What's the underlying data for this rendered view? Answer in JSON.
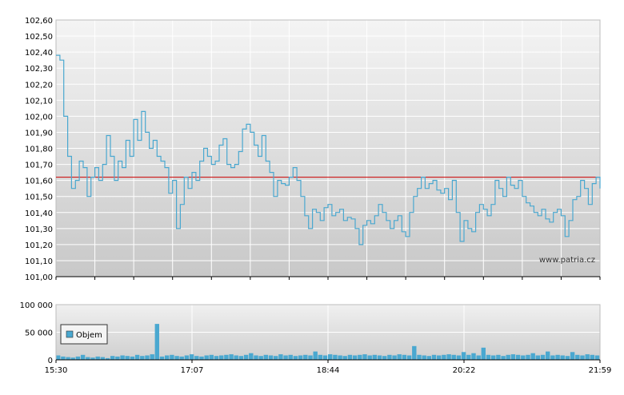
{
  "chart_data": [
    {
      "type": "line",
      "panel": "price",
      "ylim": [
        101.0,
        102.6
      ],
      "y_ticks": [
        "101,00",
        "101,10",
        "101,20",
        "101,30",
        "101,40",
        "101,50",
        "101,60",
        "101,70",
        "101,80",
        "101,90",
        "102,00",
        "102,10",
        "102,20",
        "102,30",
        "102,40",
        "102,50",
        "102,60"
      ],
      "reference_line": 101.62,
      "watermark": "www.patria.cz",
      "line_color": "#4aa8d0",
      "reference_color": "#cc0000",
      "grid": true,
      "series": [
        {
          "x": [
            0,
            1,
            2,
            3,
            4,
            5,
            6,
            7,
            8,
            9,
            10,
            11,
            12,
            13,
            14,
            15,
            16,
            17,
            18,
            19,
            20,
            21,
            22,
            23,
            24,
            25,
            26,
            27,
            28,
            29,
            30,
            31,
            32,
            33,
            34,
            35,
            36,
            37,
            38,
            39,
            40,
            41,
            42,
            43,
            44,
            45,
            46,
            47,
            48,
            49,
            50,
            51,
            52,
            53,
            54,
            55,
            56,
            57,
            58,
            59,
            60,
            61,
            62,
            63,
            64,
            65,
            66,
            67,
            68,
            69,
            70,
            71,
            72,
            73,
            74,
            75,
            76,
            77,
            78,
            79,
            80,
            81,
            82,
            83,
            84,
            85,
            86,
            87,
            88,
            89,
            90,
            91,
            92,
            93,
            94,
            95,
            96,
            97,
            98,
            99,
            100,
            101,
            102,
            103,
            104,
            105,
            106,
            107,
            108,
            109,
            110,
            111,
            112,
            113,
            114,
            115,
            116,
            117,
            118,
            119,
            120,
            121,
            122,
            123,
            124,
            125,
            126,
            127,
            128,
            129,
            130,
            131,
            132,
            133,
            134,
            135,
            136,
            137,
            138,
            139,
            140
          ],
          "values": [
            102.38,
            102.35,
            102.0,
            101.75,
            101.55,
            101.6,
            101.72,
            101.68,
            101.5,
            101.62,
            101.68,
            101.6,
            101.7,
            101.88,
            101.75,
            101.6,
            101.72,
            101.68,
            101.85,
            101.75,
            101.98,
            101.85,
            102.03,
            101.9,
            101.8,
            101.85,
            101.75,
            101.72,
            101.68,
            101.52,
            101.6,
            101.3,
            101.45,
            101.62,
            101.55,
            101.65,
            101.6,
            101.72,
            101.8,
            101.75,
            101.7,
            101.72,
            101.82,
            101.86,
            101.7,
            101.68,
            101.7,
            101.78,
            101.92,
            101.95,
            101.9,
            101.82,
            101.75,
            101.88,
            101.72,
            101.65,
            101.5,
            101.6,
            101.58,
            101.57,
            101.62,
            101.68,
            101.6,
            101.5,
            101.38,
            101.3,
            101.42,
            101.4,
            101.35,
            101.43,
            101.45,
            101.38,
            101.4,
            101.42,
            101.35,
            101.37,
            101.36,
            101.3,
            101.2,
            101.32,
            101.35,
            101.33,
            101.38,
            101.45,
            101.4,
            101.35,
            101.3,
            101.35,
            101.38,
            101.28,
            101.25,
            101.4,
            101.5,
            101.55,
            101.62,
            101.55,
            101.58,
            101.6,
            101.54,
            101.52,
            101.55,
            101.48,
            101.6,
            101.4,
            101.22,
            101.35,
            101.3,
            101.28,
            101.4,
            101.45,
            101.42,
            101.38,
            101.45,
            101.6,
            101.55,
            101.5,
            101.62,
            101.57,
            101.55,
            101.6,
            101.5,
            101.46,
            101.44,
            101.4,
            101.38,
            101.42,
            101.36,
            101.34,
            101.4,
            101.42,
            101.38,
            101.25,
            101.35,
            101.48,
            101.5,
            101.6,
            101.55,
            101.45,
            101.58,
            101.62,
            101.55
          ]
        }
      ]
    },
    {
      "type": "bar",
      "panel": "volume",
      "ylim": [
        0,
        100000
      ],
      "y_ticks": [
        "0",
        "50 000",
        "100 000"
      ],
      "x_ticks": [
        "15:30",
        "17:07",
        "18:44",
        "20:22",
        "21:59"
      ],
      "legend": {
        "label": "Objem",
        "placement": "left"
      },
      "bar_color": "#4aa8d0",
      "grid": true,
      "series": [
        {
          "name": "Objem",
          "values": [
            8000,
            6000,
            5000,
            4000,
            6000,
            9000,
            5000,
            4000,
            6000,
            5000,
            3000,
            7000,
            6000,
            8000,
            7000,
            6000,
            9000,
            7000,
            8000,
            10000,
            65000,
            6000,
            8000,
            9000,
            7000,
            6000,
            8000,
            10000,
            7000,
            6000,
            8000,
            9000,
            7000,
            8000,
            9000,
            10000,
            8000,
            7000,
            9000,
            12000,
            8000,
            7000,
            9000,
            8000,
            7000,
            10000,
            8000,
            9000,
            7000,
            8000,
            9000,
            8000,
            15000,
            9000,
            8000,
            10000,
            9000,
            8000,
            7000,
            9000,
            8000,
            9000,
            10000,
            8000,
            9000,
            8000,
            7000,
            9000,
            8000,
            10000,
            9000,
            8000,
            25000,
            9000,
            8000,
            7000,
            9000,
            8000,
            9000,
            10000,
            9000,
            8000,
            14000,
            9000,
            12000,
            8000,
            22000,
            9000,
            8000,
            9000,
            7000,
            9000,
            10000,
            9000,
            8000,
            9000,
            12000,
            8000,
            9000,
            15000,
            8000,
            9000,
            8000,
            7000,
            14000,
            9000,
            8000,
            10000,
            9000,
            8000
          ]
        }
      ]
    }
  ]
}
